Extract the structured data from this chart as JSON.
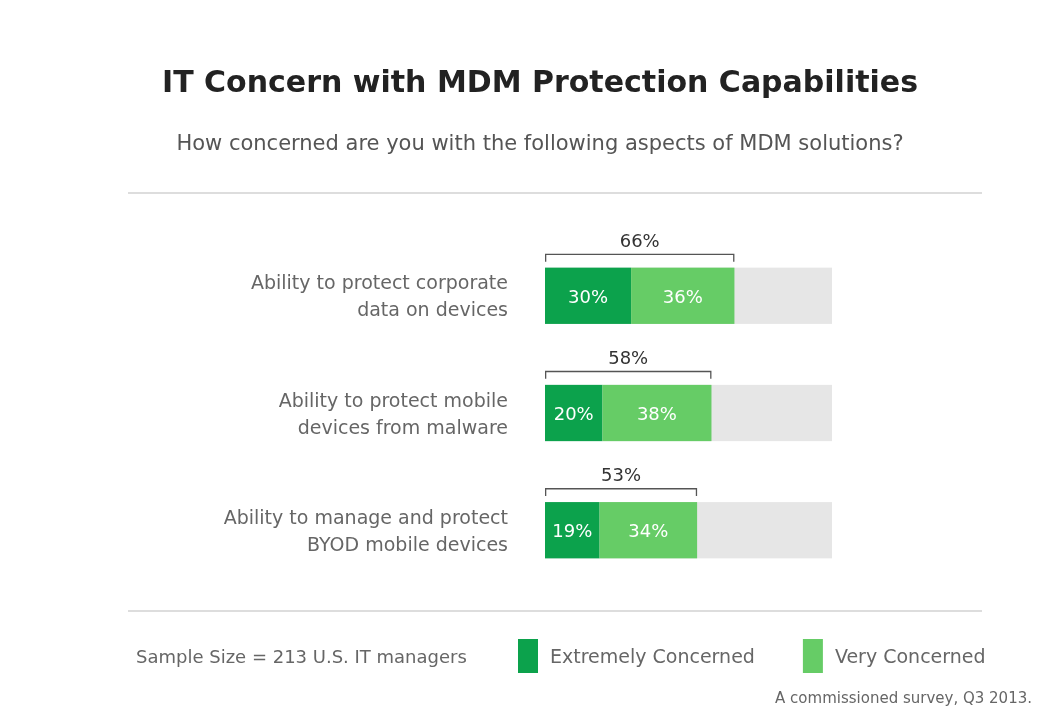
{
  "chart_data": {
    "type": "bar",
    "orientation": "horizontal",
    "stacked": true,
    "title": "IT Concern with MDM Protection Capabilities",
    "subtitle": "How concerned are you with the following aspects of MDM solutions?",
    "categories": [
      "Ability to protect corporate data on devices",
      "Ability to protect mobile devices from malware",
      "Ability to manage and protect BYOD mobile devices"
    ],
    "series": [
      {
        "name": "Extremely Concerned",
        "color": "#0ca24c",
        "values": [
          30,
          20,
          19
        ],
        "value_labels": [
          "30%",
          "20%",
          "19%"
        ]
      },
      {
        "name": "Very Concerned",
        "color": "#66cc66",
        "values": [
          36,
          38,
          34
        ],
        "value_labels": [
          "36%",
          "38%",
          "34%"
        ]
      }
    ],
    "totals": [
      "66%",
      "58%",
      "53%"
    ],
    "xlim": [
      0,
      100
    ],
    "tick_labels": false,
    "legend": "bottom",
    "annotations": [
      "Sample Size = 213 U.S. IT managers",
      "A commissioned survey, Q3 2013."
    ]
  }
}
